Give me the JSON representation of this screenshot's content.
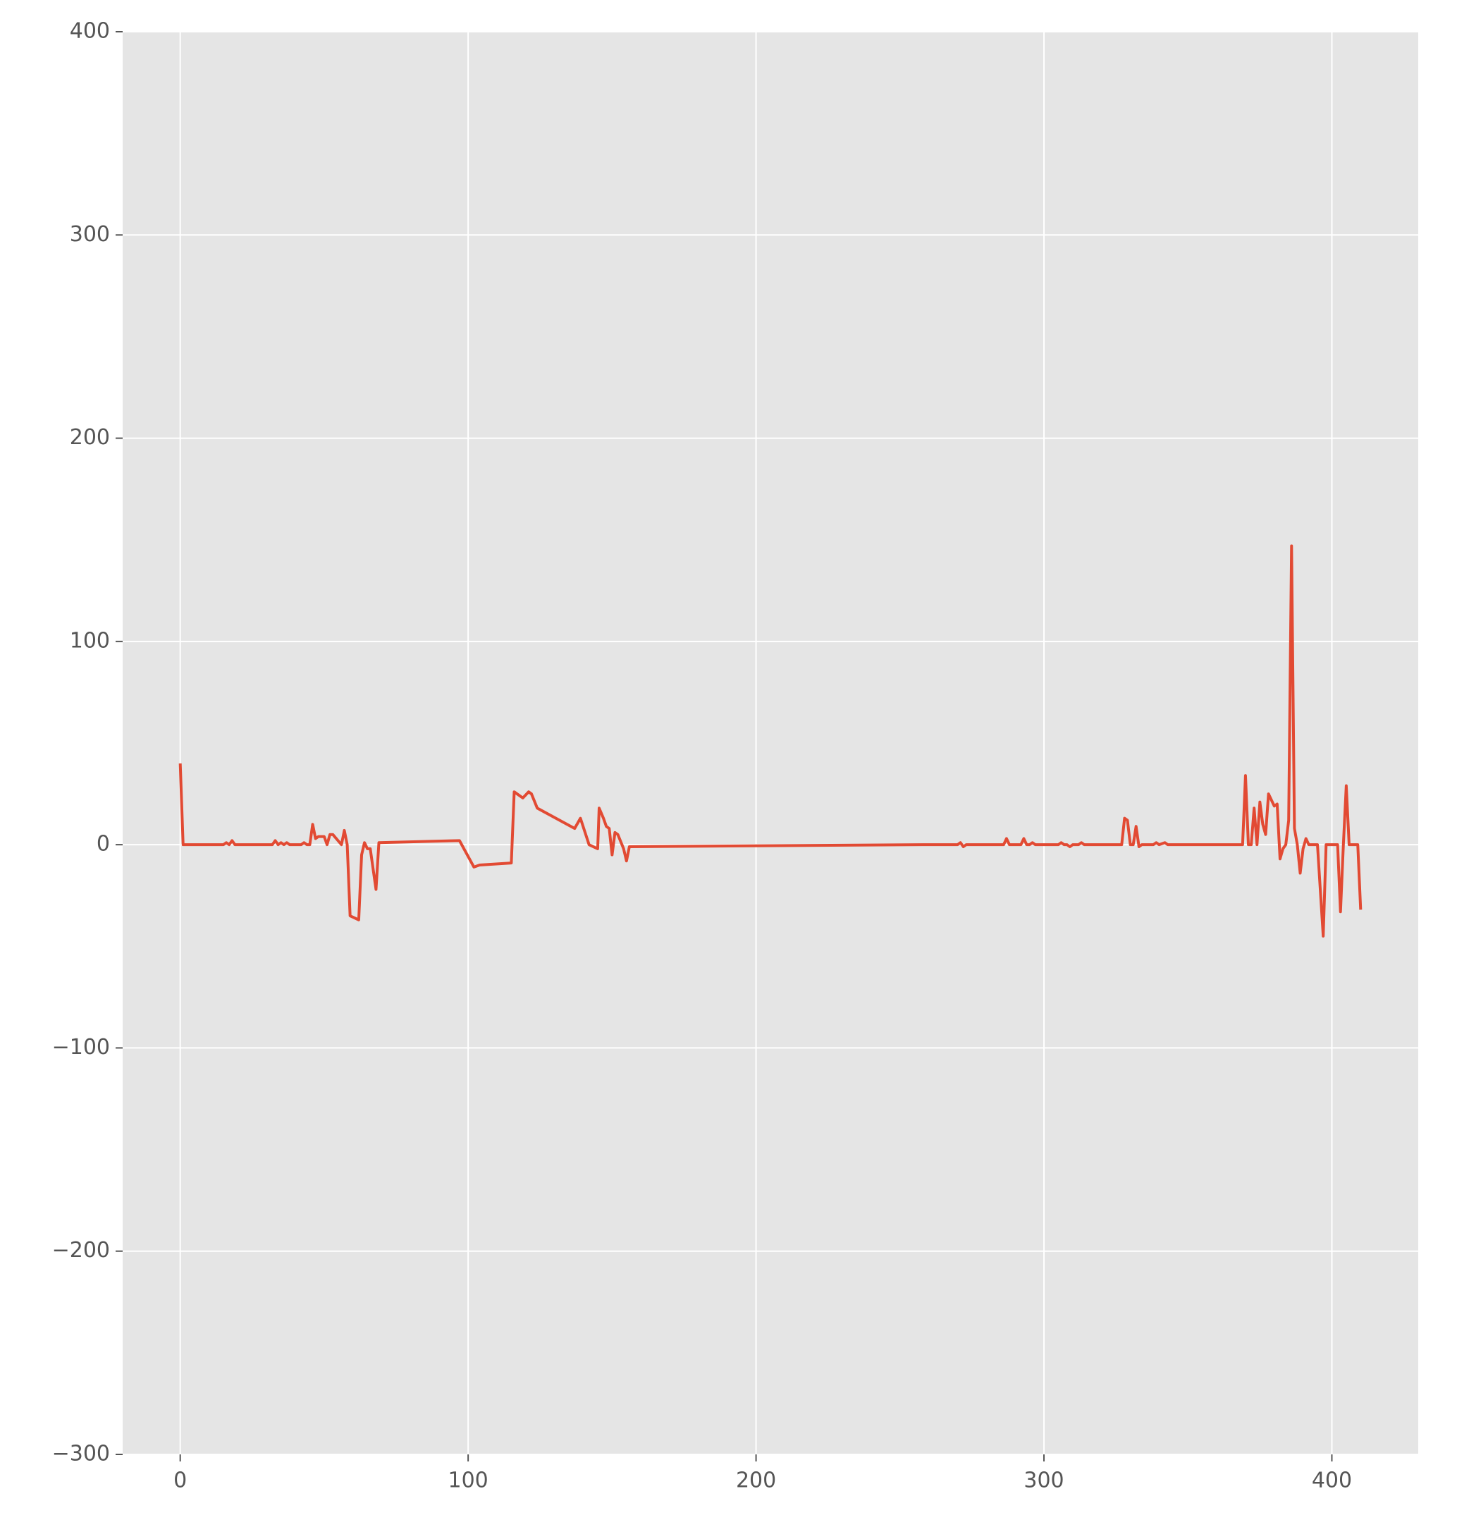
{
  "chart_data": {
    "type": "line",
    "x": [
      0,
      1,
      15,
      16,
      17,
      18,
      19,
      32,
      33,
      34,
      35,
      36,
      37,
      38,
      42,
      43,
      44,
      45,
      46,
      47,
      48,
      50,
      51,
      52,
      53,
      56,
      57,
      58,
      59,
      62,
      63,
      64,
      65,
      66,
      68,
      69,
      97,
      102,
      104,
      115,
      116,
      119,
      121,
      122,
      124,
      137,
      139,
      142,
      145,
      145.5,
      147,
      148,
      149,
      150,
      151,
      152,
      154,
      155,
      156,
      258,
      270,
      271,
      272,
      273,
      286,
      287,
      288,
      292,
      293,
      294,
      295,
      296,
      297,
      305,
      306,
      307,
      308,
      309,
      310,
      312,
      313,
      314,
      327,
      328,
      329,
      330,
      331,
      332,
      333,
      334,
      338,
      339,
      340,
      342,
      343,
      369,
      370,
      371,
      372,
      373,
      374,
      375,
      376,
      377,
      378,
      379,
      380,
      381,
      382,
      383,
      384,
      385,
      386,
      387,
      388,
      389,
      390,
      391,
      392,
      395,
      397,
      398,
      402,
      403,
      404,
      405,
      406,
      409,
      410
    ],
    "series": [
      {
        "color": "#e24a33",
        "values": [
          40,
          0,
          0,
          1,
          0,
          2,
          0,
          0,
          2,
          0,
          1,
          0,
          1,
          0,
          0,
          1,
          0,
          0,
          10,
          3,
          4,
          4,
          0,
          5,
          5,
          0,
          7,
          0,
          -35,
          -37,
          -5,
          1,
          -2,
          -2,
          -22,
          1,
          2,
          -11,
          -10,
          -9,
          26,
          23,
          26,
          25,
          18,
          8,
          13,
          0,
          -2,
          18,
          13,
          9,
          8,
          -5,
          6,
          5,
          -2,
          -8,
          -1,
          0,
          0,
          1,
          -1,
          0,
          0,
          3,
          0,
          0,
          3,
          0,
          0,
          1,
          0,
          0,
          1,
          0,
          0,
          -1,
          0,
          0,
          1,
          0,
          0,
          13,
          12,
          0,
          0,
          9,
          -1,
          0,
          0,
          1,
          0,
          1,
          0,
          0,
          34,
          0,
          0,
          18,
          0,
          21,
          10,
          5,
          25,
          22,
          19,
          20,
          -7,
          -2,
          0,
          12,
          147,
          8,
          0,
          -14,
          -2,
          3,
          0,
          0,
          -45,
          0,
          0,
          -33,
          0,
          29,
          0,
          0,
          -32
        ]
      }
    ],
    "xlim": [
      -20,
      430
    ],
    "ylim": [
      -300,
      400
    ],
    "xticks": [
      0,
      100,
      200,
      300,
      400
    ],
    "yticks": [
      {
        "value": -300,
        "label": "−300"
      },
      {
        "value": -200,
        "label": "−200"
      },
      {
        "value": -100,
        "label": "−100"
      },
      0,
      100,
      200,
      300,
      400
    ],
    "grid": true
  }
}
